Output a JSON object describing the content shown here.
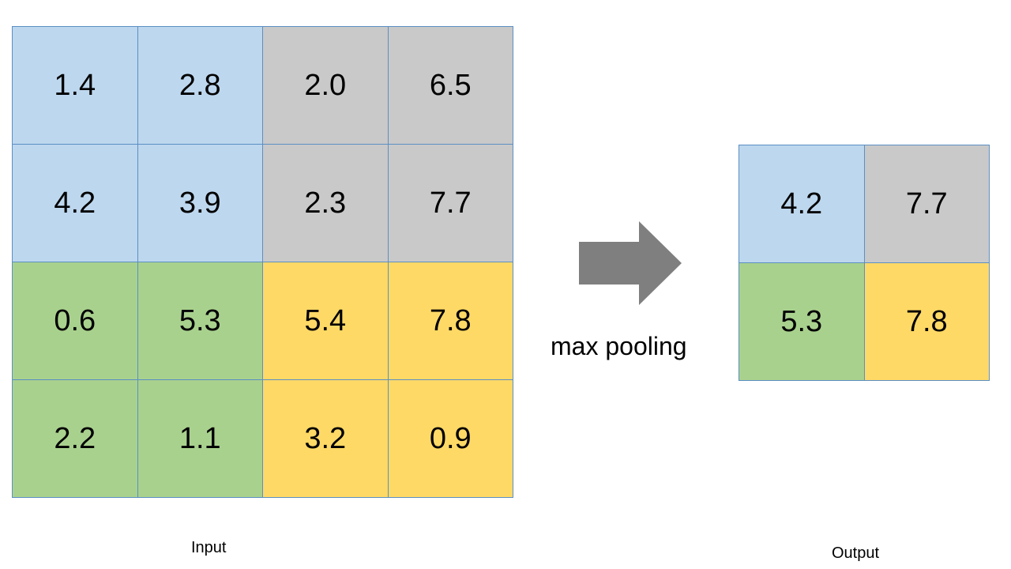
{
  "input": {
    "label": "Input",
    "rows": [
      [
        "1.4",
        "2.8",
        "2.0",
        "6.5"
      ],
      [
        "4.2",
        "3.9",
        "2.3",
        "7.7"
      ],
      [
        "0.6",
        "5.3",
        "5.4",
        "7.8"
      ],
      [
        "2.2",
        "1.1",
        "3.2",
        "0.9"
      ]
    ]
  },
  "output": {
    "label": "Output",
    "rows": [
      [
        "4.2",
        "7.7"
      ],
      [
        "5.3",
        "7.8"
      ]
    ]
  },
  "operation": {
    "label": "max pooling",
    "icon": "right-arrow-icon"
  },
  "colors": {
    "quadrant_top_left": "#bdd7ee",
    "quadrant_top_right": "#c9c9c9",
    "quadrant_bottom_left": "#a9d18e",
    "quadrant_bottom_right": "#ffd966",
    "grid_line": "#5b8fc4",
    "arrow": "#7f7f7f"
  }
}
